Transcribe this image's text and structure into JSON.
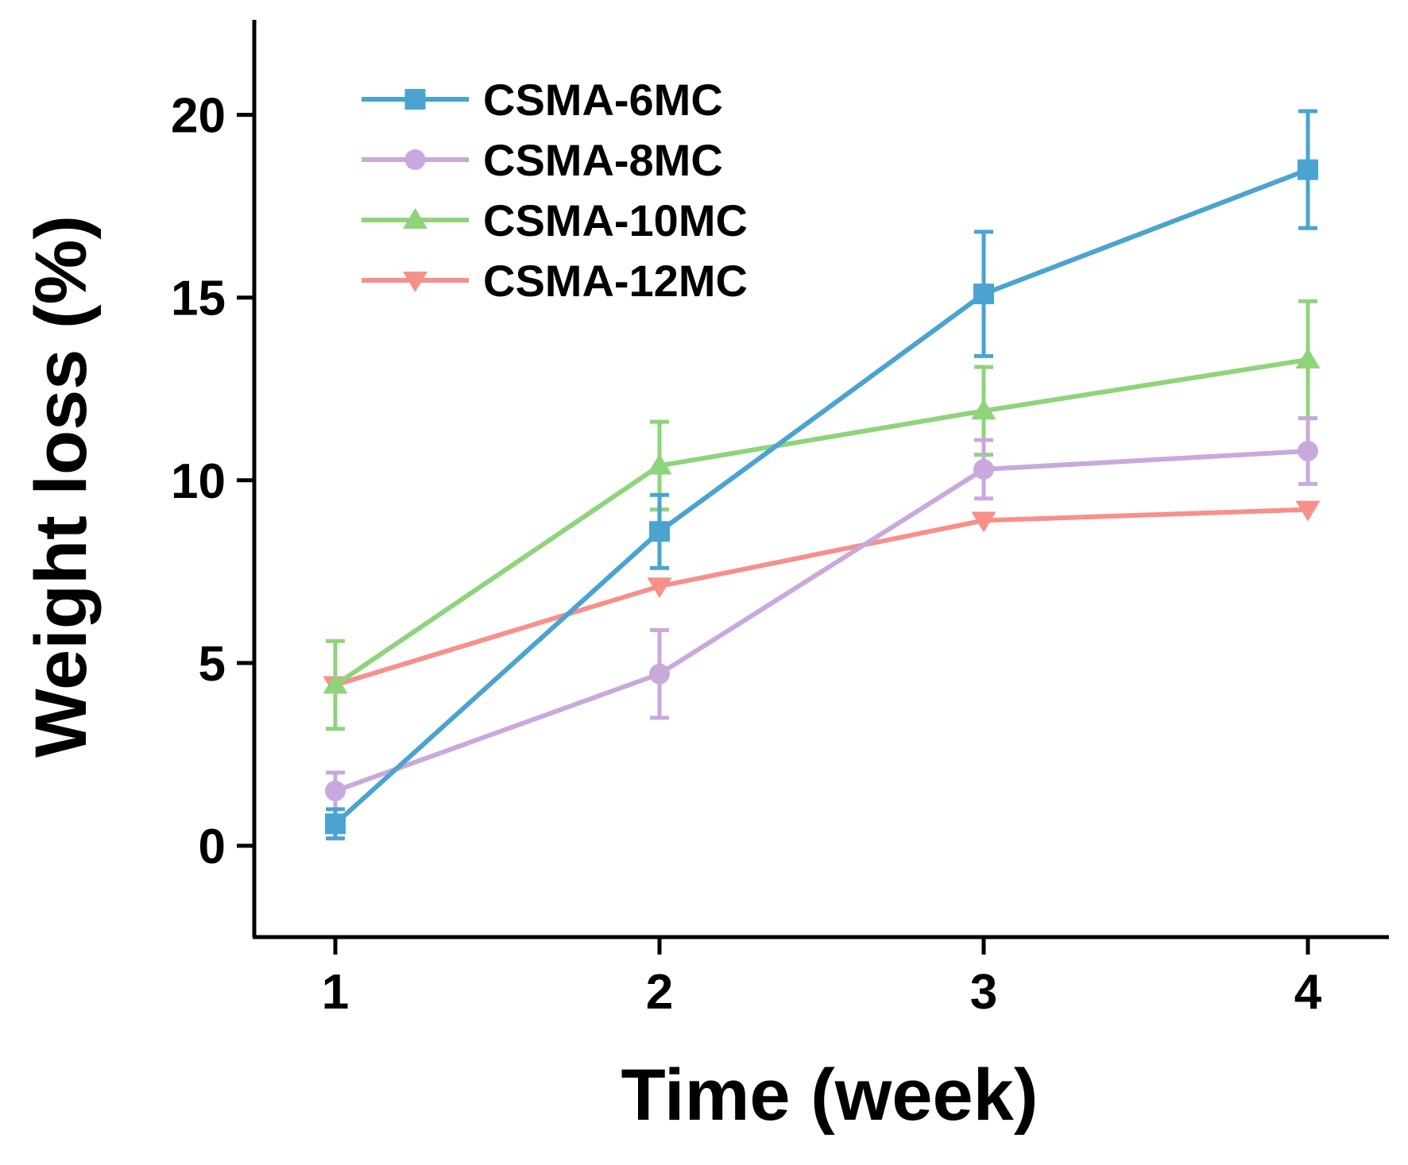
{
  "chart_data": {
    "type": "line",
    "title": "",
    "xlabel": "Time (week)",
    "ylabel": "Weight loss (%)",
    "xlim": [
      0.75,
      4.25
    ],
    "ylim": [
      -2.5,
      22.6
    ],
    "xticks": [
      "1",
      "2",
      "3",
      "4"
    ],
    "yticks": [
      "0",
      "5",
      "10",
      "15",
      "20"
    ],
    "x": [
      1,
      2,
      3,
      4
    ],
    "legend_position": "top-left",
    "series": [
      {
        "name": "CSMA-6MC",
        "color": "#4aa3d0",
        "marker": "square",
        "values": [
          0.6,
          8.6,
          15.1,
          18.5
        ],
        "errors": [
          0.4,
          1.0,
          1.7,
          1.6
        ]
      },
      {
        "name": "CSMA-8MC",
        "color": "#c9a9dc",
        "marker": "circle",
        "values": [
          1.5,
          4.7,
          10.3,
          10.8
        ],
        "errors": [
          0.5,
          1.2,
          0.8,
          0.9
        ]
      },
      {
        "name": "CSMA-10MC",
        "color": "#8ed47a",
        "marker": "triangle-up",
        "values": [
          4.4,
          10.4,
          11.9,
          13.3
        ],
        "errors": [
          1.2,
          1.2,
          1.2,
          1.6
        ]
      },
      {
        "name": "CSMA-12MC",
        "color": "#f7908a",
        "marker": "triangle-down",
        "values": [
          4.4,
          7.1,
          8.9,
          9.2
        ],
        "errors": [
          0.1,
          0.1,
          0.1,
          0.1
        ]
      }
    ]
  }
}
